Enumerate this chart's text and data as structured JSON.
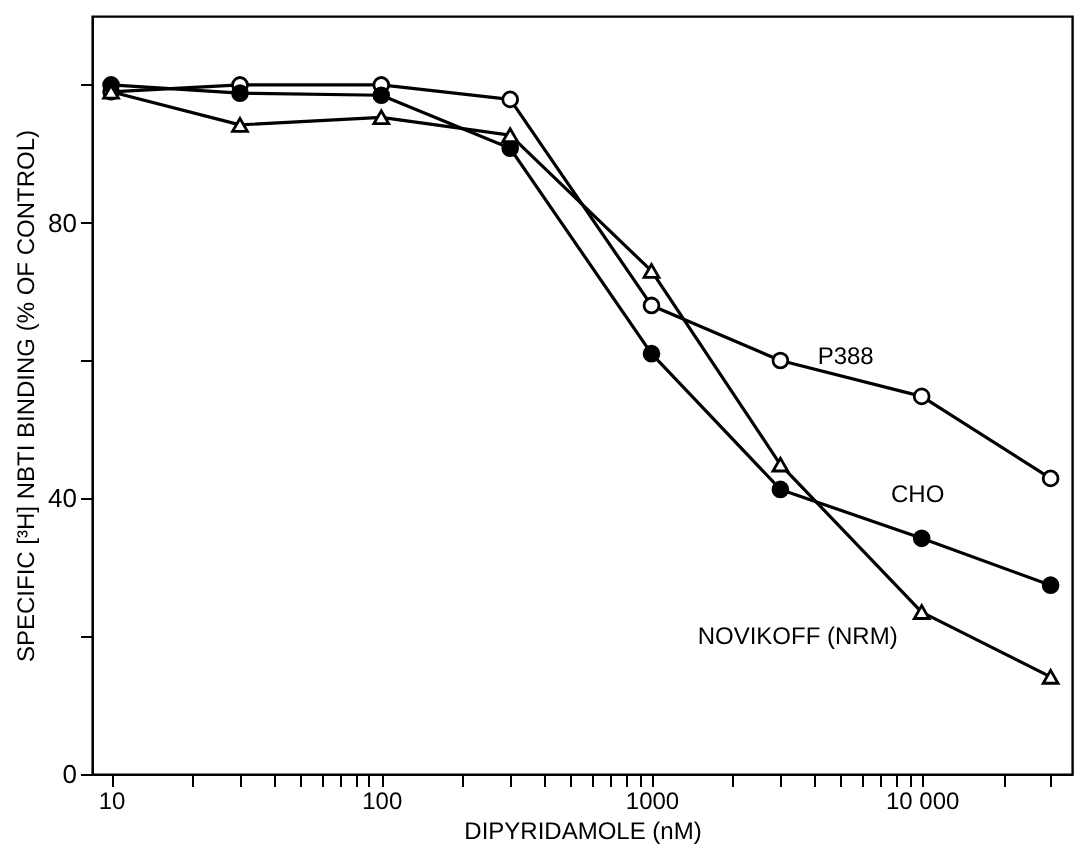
{
  "chart_data": {
    "type": "line",
    "xlabel": "DIPYRIDAMOLE (nM)",
    "ylabel": "SPECIFIC [³H] NBTI BINDING (% OF CONTROL)",
    "x": [
      10,
      30,
      100,
      300,
      1000,
      3000,
      10000,
      30000
    ],
    "series": [
      {
        "name": "P388",
        "color": "#000000",
        "marker": "circle",
        "values": [
          99,
          100,
          100,
          97.9,
          68,
          60,
          54.8,
          42.9
        ]
      },
      {
        "name": "CHO",
        "color": "#000000",
        "marker": "circle",
        "values": [
          100,
          98.8,
          98.5,
          90.8,
          61,
          41.3,
          34.2,
          27.4
        ]
      },
      {
        "name": "NOVIKOFF (NRM)",
        "color": "#000000",
        "marker": "triangle",
        "values": [
          99,
          94.2,
          95.3,
          92.7,
          73,
          44.9,
          23.5,
          14.1
        ]
      }
    ],
    "log": "x",
    "xlim": [
      8.5,
      36000
    ],
    "ylim": [
      0,
      110
    ],
    "xticks": [
      10,
      {
        "value": 20,
        "label": null
      },
      {
        "value": 30,
        "label": null
      },
      {
        "value": 40,
        "label": null
      },
      {
        "value": 50,
        "label": null
      },
      {
        "value": 60,
        "label": null
      },
      {
        "value": 70,
        "label": null
      },
      {
        "value": 80,
        "label": null
      },
      {
        "value": 90,
        "label": null
      },
      100,
      {
        "value": 200,
        "label": null
      },
      {
        "value": 300,
        "label": null
      },
      {
        "value": 400,
        "label": null
      },
      {
        "value": 500,
        "label": null
      },
      {
        "value": 600,
        "label": null
      },
      {
        "value": 700,
        "label": null
      },
      {
        "value": 800,
        "label": null
      },
      {
        "value": 900,
        "label": null
      },
      1000,
      {
        "value": 2000,
        "label": null
      },
      {
        "value": 3000,
        "label": null
      },
      {
        "value": 4000,
        "label": null
      },
      {
        "value": 5000,
        "label": null
      },
      {
        "value": 6000,
        "label": null
      },
      {
        "value": 7000,
        "label": null
      },
      {
        "value": 8000,
        "label": null
      },
      {
        "value": 9000,
        "label": null
      },
      {
        "value": 10000,
        "label": "10 000"
      },
      {
        "value": 20000,
        "label": null
      },
      {
        "value": 30000,
        "label": null
      }
    ],
    "yticks": [
      0,
      {
        "value": 20,
        "label": null
      },
      40,
      {
        "value": 60,
        "label": null
      },
      80,
      {
        "value": 100,
        "label": null
      }
    ],
    "grid": false,
    "legend": false
  }
}
